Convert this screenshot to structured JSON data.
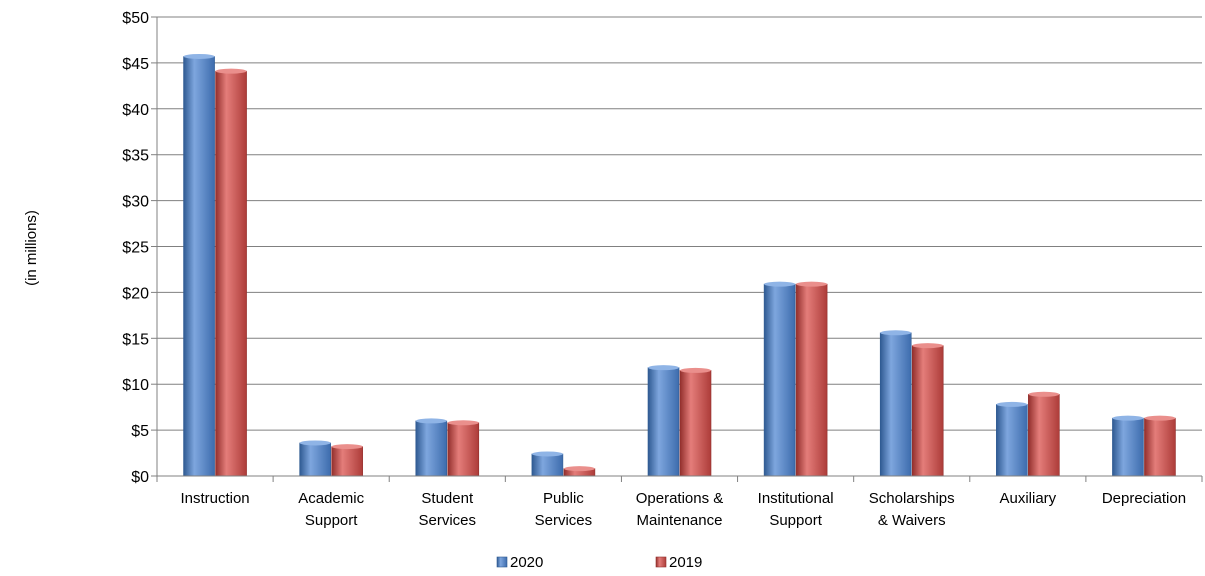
{
  "chart_data": {
    "type": "bar",
    "title": "",
    "xlabel": "",
    "ylabel": "(in millions)",
    "ylim": [
      0,
      50
    ],
    "yticks": [
      0,
      5,
      10,
      15,
      20,
      25,
      30,
      35,
      40,
      45,
      50
    ],
    "ytick_labels": [
      "$0",
      "$5",
      "$10",
      "$15",
      "$20",
      "$25",
      "$30",
      "$35",
      "$40",
      "$45",
      "$50"
    ],
    "grid": true,
    "legend_position": "bottom",
    "categories": [
      [
        "Instruction"
      ],
      [
        "Academic",
        "Support"
      ],
      [
        "Student",
        "Services"
      ],
      [
        "Public",
        "Services"
      ],
      [
        "Operations &",
        "Maintenance"
      ],
      [
        "Institutional",
        "Support"
      ],
      [
        "Scholarships",
        "& Waivers"
      ],
      [
        "Auxiliary"
      ],
      [
        "Depreciation"
      ]
    ],
    "series": [
      {
        "name": "2020",
        "color": "#4f81bd",
        "values": [
          45.7,
          3.6,
          6.0,
          2.4,
          11.8,
          20.9,
          15.6,
          7.8,
          6.3
        ]
      },
      {
        "name": "2019",
        "color": "#c0504d",
        "values": [
          44.1,
          3.2,
          5.8,
          0.8,
          11.5,
          20.9,
          14.2,
          8.9,
          6.3
        ]
      }
    ]
  }
}
